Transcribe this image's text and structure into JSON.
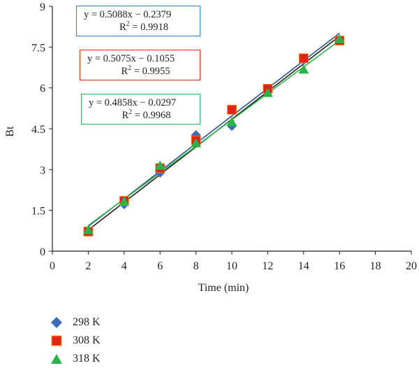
{
  "chart_data": {
    "type": "scatter",
    "xlabel": "Time (min)",
    "ylabel": "Bt",
    "xlim": [
      0,
      20
    ],
    "ylim": [
      0,
      9
    ],
    "xticks": [
      "0",
      "2",
      "4",
      "6",
      "8",
      "10",
      "12",
      "14",
      "16",
      "18",
      "20"
    ],
    "yticks": [
      "0",
      "1.5",
      "3",
      "4.5",
      "6",
      "7.5",
      "9"
    ],
    "grid": false,
    "legend_position": "bottom-left",
    "series": [
      {
        "name": "298 K",
        "marker": "diamond",
        "color": "#3d6bb5",
        "x": [
          2,
          4,
          6,
          8,
          10,
          12,
          14,
          16
        ],
        "y": [
          0.76,
          1.72,
          2.88,
          4.27,
          4.6,
          5.86,
          7.02,
          7.76
        ],
        "trendline": {
          "slope": 0.5088,
          "intercept": -0.2379,
          "color": "#1f1f1f"
        },
        "equation": "y = 0.5088x − 0.2379",
        "r2_label": "R",
        "r2_value": " = 0.9918",
        "box_color": "#2f7fc1"
      },
      {
        "name": "308 K",
        "marker": "square",
        "color": "#e2231a",
        "x": [
          2,
          4,
          6,
          8,
          10,
          12,
          14,
          16
        ],
        "y": [
          0.72,
          1.85,
          3.05,
          4.07,
          5.2,
          5.97,
          7.09,
          7.74
        ],
        "trendline": {
          "slope": 0.5075,
          "intercept": -0.1055,
          "color": "#2e4f8f"
        },
        "equation": "y = 0.5075x − 0.1055",
        "r2_label": "R",
        "r2_value": " = 0.9955",
        "box_color": "#e2231a"
      },
      {
        "name": "318 K",
        "marker": "triangle",
        "color": "#2bb34a",
        "x": [
          2,
          4,
          6,
          8,
          10,
          12,
          14,
          16
        ],
        "y": [
          0.78,
          1.84,
          3.15,
          3.97,
          4.75,
          5.82,
          6.68,
          7.8
        ],
        "trendline": {
          "slope": 0.4858,
          "intercept": -0.0297,
          "color": "#2bb34a"
        },
        "equation": "y = 0.4858x − 0.0297",
        "r2_label": "R",
        "r2_value": " = 0.9968",
        "box_color": "#2bb34a"
      }
    ]
  }
}
